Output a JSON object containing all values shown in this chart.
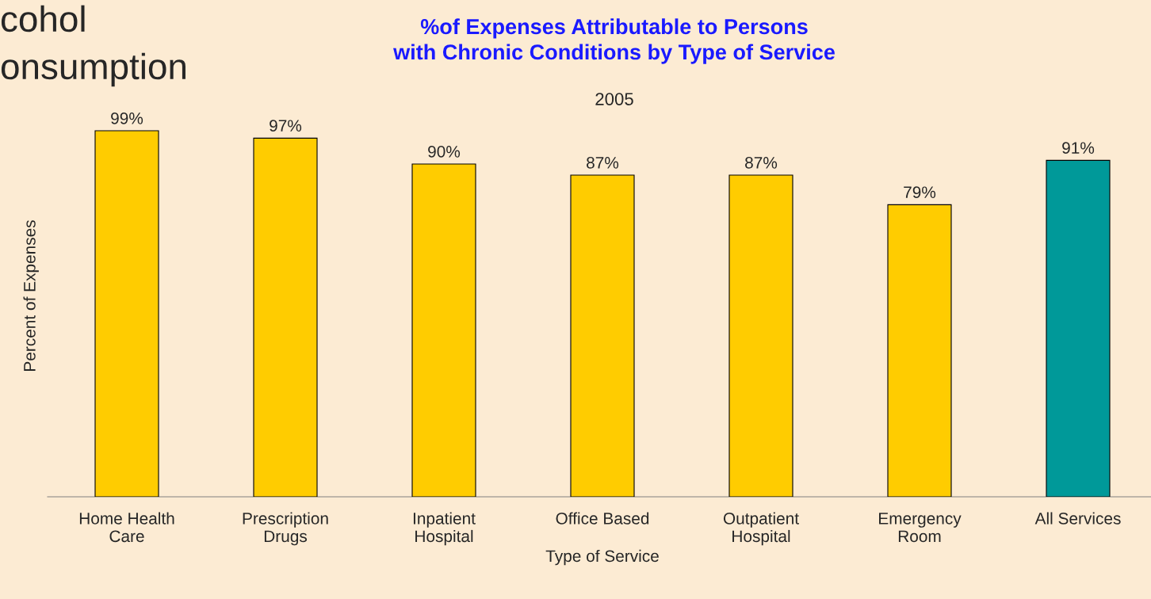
{
  "chart_data": {
    "type": "bar",
    "title": "%of Expenses Attributable to Persons\nwith Chronic Conditions by Type of Service",
    "subtitle": "2005",
    "xlabel": "Type of Service",
    "ylabel": "Percent of Expenses",
    "categories": [
      "Home Health\nCare",
      "Prescription\nDrugs",
      "Inpatient\nHospital",
      "Office Based",
      "Outpatient\nHospital",
      "Emergency\nRoom",
      "All Services"
    ],
    "values": [
      99,
      97,
      90,
      87,
      87,
      79,
      91
    ],
    "colors": [
      "#ffcc00",
      "#ffcc00",
      "#ffcc00",
      "#ffcc00",
      "#ffcc00",
      "#ffcc00",
      "#009999"
    ],
    "value_labels": [
      "99%",
      "97%",
      "90%",
      "87%",
      "87%",
      "79%",
      "91%"
    ],
    "annotations": [
      "cohol",
      "onsumption"
    ],
    "grid": false,
    "legend": false
  }
}
